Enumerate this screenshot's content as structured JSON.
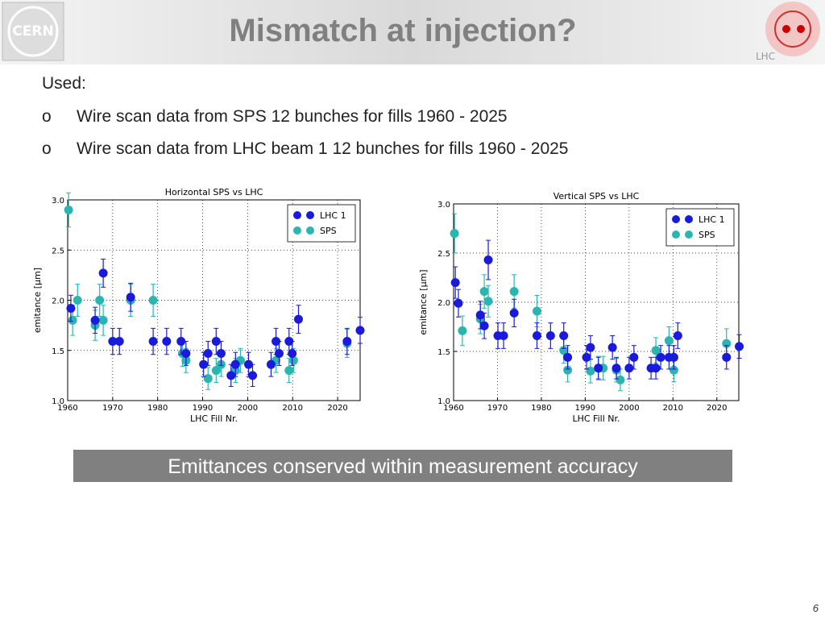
{
  "header": {
    "title": "Mismatch at injection?",
    "left_logo": "CERN",
    "right_logo": "LHC"
  },
  "intro": "Used:",
  "bullets": [
    {
      "marker": "o",
      "text": "Wire scan data from SPS 12 bunches for fills 1960 - 2025"
    },
    {
      "marker": "o",
      "text": "Wire scan data from LHC beam 1 12 bunches for fills 1960 - 2025"
    }
  ],
  "chart_data": [
    {
      "type": "scatter",
      "title": "Horizontal SPS vs LHC",
      "x_label": "LHC Fill Nr.",
      "y_label": "emitance [μm]",
      "xlim": [
        1960,
        2025
      ],
      "ylim": [
        1,
        3
      ],
      "xticks": [
        1960,
        1970,
        1980,
        1990,
        2000,
        2010,
        2020
      ],
      "yticks": [
        {
          "value": 1,
          "label": "1.0"
        },
        {
          "value": 1.5,
          "label": "1.5"
        },
        {
          "value": 2,
          "label": "2.0"
        },
        {
          "value": 2.5,
          "label": "2.5"
        },
        {
          "value": 3,
          "label": "3.0"
        }
      ],
      "grid": true,
      "legend": "upper right",
      "series": [
        {
          "name": "LHC 1",
          "color": "#1a1adb",
          "x": [
            1960.7,
            1966.1,
            1967.9,
            1970,
            1971.5,
            1974,
            1979,
            1982,
            1985.2,
            1986.3,
            1990.2,
            1991.2,
            1993,
            1994.1,
            1996.3,
            1997.3,
            2000.2,
            2001.1,
            2005.2,
            2006.3,
            2007,
            2009.2,
            2009.9,
            2011.3,
            2022.1,
            2025
          ],
          "values": [
            1.92,
            1.8,
            2.27,
            1.59,
            1.59,
            2.03,
            1.59,
            1.59,
            1.59,
            1.47,
            1.36,
            1.47,
            1.59,
            1.47,
            1.25,
            1.36,
            1.36,
            1.25,
            1.36,
            1.59,
            1.47,
            1.59,
            1.47,
            1.81,
            1.59,
            1.7
          ],
          "errors": [
            0.13,
            0.13,
            0.14,
            0.13,
            0.13,
            0.14,
            0.13,
            0.13,
            0.13,
            0.12,
            0.12,
            0.12,
            0.13,
            0.12,
            0.11,
            0.12,
            0.12,
            0.11,
            0.12,
            0.13,
            0.12,
            0.13,
            0.12,
            0.14,
            0.13,
            0.13
          ]
        },
        {
          "name": "SPS",
          "color": "#2ab5b0",
          "x": [
            1960.2,
            1961.1,
            1962.2,
            1966.1,
            1967.1,
            1967.9,
            1974,
            1979,
            1985.5,
            1986.3,
            1991.2,
            1993,
            1994.1,
            1997.3,
            1998.4,
            2006.3,
            2009.2,
            2010.2,
            2022.1
          ],
          "values": [
            2.9,
            1.8,
            2,
            1.75,
            2,
            1.8,
            2,
            2,
            1.47,
            1.4,
            1.22,
            1.3,
            1.36,
            1.3,
            1.4,
            1.4,
            1.3,
            1.4,
            1.57
          ],
          "errors": [
            0.17,
            0.15,
            0.16,
            0.15,
            0.16,
            0.15,
            0.16,
            0.16,
            0.13,
            0.12,
            0.11,
            0.12,
            0.12,
            0.12,
            0.12,
            0.12,
            0.12,
            0.12,
            0.14
          ]
        }
      ]
    },
    {
      "type": "scatter",
      "title": "Vertical SPS vs LHC",
      "x_label": "LHC Fill Nr.",
      "y_label": "emitance [μm]",
      "xlim": [
        1960,
        2025
      ],
      "ylim": [
        1,
        3
      ],
      "xticks": [
        1960,
        1970,
        1980,
        1990,
        2000,
        2010,
        2020
      ],
      "yticks": [
        {
          "value": 1,
          "label": "1.0"
        },
        {
          "value": 1.5,
          "label": "1.5"
        },
        {
          "value": 2,
          "label": "2.0"
        },
        {
          "value": 2.5,
          "label": "2.5"
        },
        {
          "value": 3,
          "label": "3.0"
        }
      ],
      "grid": true,
      "legend": "upper right",
      "series": [
        {
          "name": "LHC 1",
          "color": "#1a1adb",
          "x": [
            1960.4,
            1961.1,
            1966.1,
            1967,
            1967.9,
            1970.1,
            1971.4,
            1973.8,
            1979,
            1982.1,
            1985.1,
            1986,
            1990.3,
            1991.2,
            1993,
            1996.2,
            1997.1,
            2000,
            2001.1,
            2005,
            2006.1,
            2007.2,
            2009.1,
            2010.2,
            2011.1,
            2022.2,
            2025.1
          ],
          "values": [
            2.2,
            1.99,
            1.87,
            1.76,
            2.43,
            1.66,
            1.66,
            1.89,
            1.66,
            1.66,
            1.66,
            1.44,
            1.44,
            1.54,
            1.33,
            1.54,
            1.33,
            1.33,
            1.44,
            1.33,
            1.33,
            1.44,
            1.44,
            1.44,
            1.66,
            1.44,
            1.55
          ],
          "errors": [
            0.16,
            0.14,
            0.14,
            0.13,
            0.2,
            0.13,
            0.13,
            0.14,
            0.13,
            0.13,
            0.13,
            0.12,
            0.12,
            0.12,
            0.11,
            0.12,
            0.11,
            0.11,
            0.12,
            0.11,
            0.11,
            0.12,
            0.12,
            0.12,
            0.13,
            0.12,
            0.12
          ]
        },
        {
          "name": "SPS",
          "color": "#2ab5b0",
          "x": [
            1960.2,
            1962,
            1966.1,
            1967,
            1967.9,
            1973.8,
            1979,
            1985.1,
            1986,
            1991.2,
            1993,
            1994.1,
            1997.1,
            1998,
            2006.1,
            2009.1,
            2010.2,
            2022.2
          ],
          "values": [
            2.7,
            1.71,
            1.83,
            2.11,
            2.01,
            2.11,
            1.91,
            1.51,
            1.31,
            1.3,
            1.33,
            1.33,
            1.31,
            1.21,
            1.51,
            1.61,
            1.31,
            1.58
          ],
          "errors": [
            0.2,
            0.15,
            0.15,
            0.17,
            0.16,
            0.17,
            0.16,
            0.13,
            0.12,
            0.12,
            0.12,
            0.12,
            0.12,
            0.11,
            0.13,
            0.14,
            0.12,
            0.15
          ]
        }
      ]
    }
  ],
  "conclusion": "Emittances conserved within measurement accuracy",
  "page_number": "6"
}
